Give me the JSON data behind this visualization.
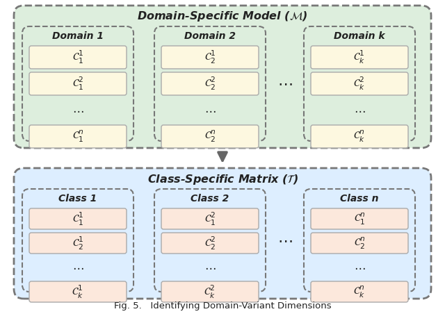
{
  "title_top": "Domain-Specific Model ($\\mathcal{M}$)",
  "title_bottom": "Class-Specific Matrix ($\\mathcal{T}$)",
  "fig_caption": "Fig. 5.   Identifying Domain-Variant Dimensions",
  "top_bg_color": "#ddeedd",
  "bottom_bg_color": "#ddeeff",
  "top_box_bg": "#fdf8e0",
  "bottom_box_bg": "#fce8dc",
  "outer_border_color": "#777777",
  "inner_border_color": "#777777",
  "cell_border_color": "#aaaaaa",
  "arrow_color": "#666666",
  "text_color": "#222222",
  "top_domains": [
    "Domain 1",
    "Domain 2",
    "Domain k"
  ],
  "bottom_classes": [
    "Class 1",
    "Class 2",
    "Class n"
  ],
  "top_row_labels": [
    [
      "$\\mathcal{C}_1^1$",
      "$\\mathcal{C}_1^2$",
      "$\\cdots$",
      "$\\mathcal{C}_1^n$"
    ],
    [
      "$\\mathcal{C}_2^1$",
      "$\\mathcal{C}_2^2$",
      "$\\cdots$",
      "$\\mathcal{C}_2^n$"
    ],
    [
      "$\\mathcal{C}_k^1$",
      "$\\mathcal{C}_k^2$",
      "$\\cdots$",
      "$\\mathcal{C}_k^n$"
    ]
  ],
  "bottom_row_labels": [
    [
      "$\\mathcal{C}_1^1$",
      "$\\mathcal{C}_2^1$",
      "$\\cdots$",
      "$\\mathcal{C}_k^1$"
    ],
    [
      "$\\mathcal{C}_1^2$",
      "$\\mathcal{C}_2^2$",
      "$\\cdots$",
      "$\\mathcal{C}_k^2$"
    ],
    [
      "$\\mathcal{C}_1^n$",
      "$\\mathcal{C}_2^n$",
      "$\\cdots$",
      "$\\mathcal{C}_k^n$"
    ]
  ]
}
